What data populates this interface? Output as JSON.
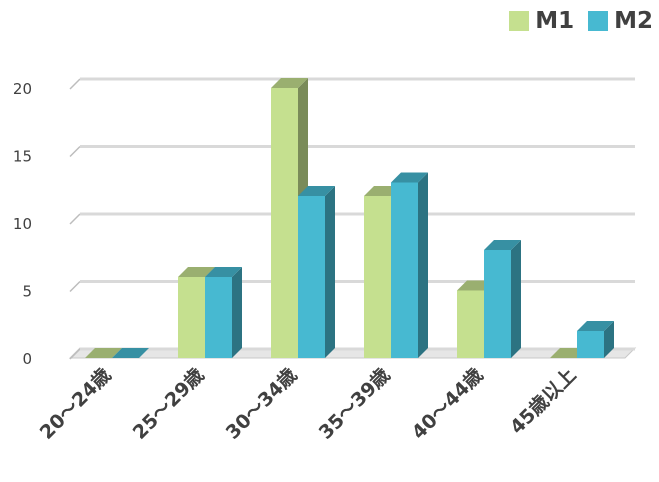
{
  "chart_data": {
    "type": "bar",
    "categories": [
      "20～24歳",
      "25～29歳",
      "30～34歳",
      "35～39歳",
      "40～44歳",
      "45歳以上"
    ],
    "series": [
      {
        "name": "M1",
        "values": [
          0,
          6,
          20,
          12,
          5,
          0
        ],
        "color": "#c5e08f"
      },
      {
        "name": "M2",
        "values": [
          0,
          6,
          12,
          13,
          8,
          2
        ],
        "color": "#47b9d1"
      }
    ],
    "yticks": [
      0,
      5,
      10,
      15,
      20
    ],
    "ylim": [
      0,
      20
    ],
    "grid": true,
    "legend_position": "top-right",
    "style": "3d-column"
  }
}
